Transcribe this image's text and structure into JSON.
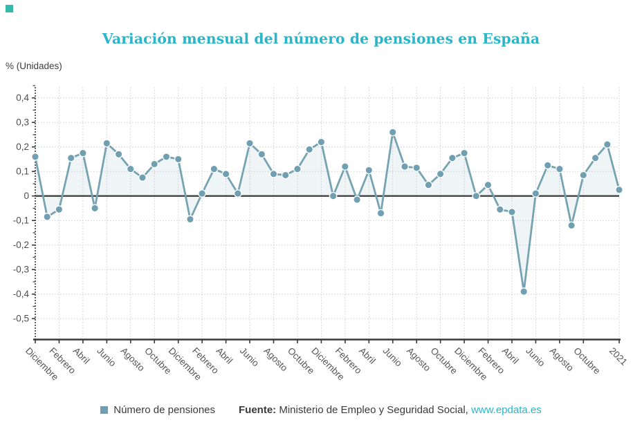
{
  "header": {
    "title": "Variación mensual del número de pensiones en España"
  },
  "brand": {
    "color": "#35b9aa"
  },
  "colors": {
    "accent_teal": "#2ab5c8",
    "series": "#6f9fb0",
    "series_line": "#76a3b2",
    "area_fill": "rgba(120,163,178,0.12)",
    "gridline": "#cccccc",
    "zero_line": "#404040",
    "axis": "#37383a",
    "tick_label": "#4d4d4d"
  },
  "legend": {
    "label": "Número de pensiones"
  },
  "footer": {
    "source_label": "Fuente:",
    "source_text": " Ministerio de Empleo y Seguridad Social, ",
    "link": "www.epdata.es"
  },
  "chart_data": {
    "type": "line",
    "title": "Variación mensual del número de pensiones en España",
    "ylabel": "% (Unidades)",
    "xlabel": "",
    "ylim": [
      -0.5,
      0.4
    ],
    "grid": true,
    "legend_position": "bottom",
    "yticks": [
      {
        "v": 0.4,
        "label": "0,4"
      },
      {
        "v": 0.3,
        "label": "0,3"
      },
      {
        "v": 0.2,
        "label": "0,2"
      },
      {
        "v": 0.1,
        "label": "0,1"
      },
      {
        "v": 0.0,
        "label": "0"
      },
      {
        "v": -0.1,
        "label": "-0,1"
      },
      {
        "v": -0.2,
        "label": "-0,2"
      },
      {
        "v": -0.3,
        "label": "-0,3"
      },
      {
        "v": -0.4,
        "label": "-0,4"
      },
      {
        "v": -0.5,
        "label": "-0,5"
      }
    ],
    "x_ticks": [
      {
        "i": 0,
        "label": "Diciembre"
      },
      {
        "i": 2,
        "label": "Febrero"
      },
      {
        "i": 4,
        "label": "Abril"
      },
      {
        "i": 6,
        "label": "Junio"
      },
      {
        "i": 8,
        "label": "Agosto"
      },
      {
        "i": 10,
        "label": "Octubre"
      },
      {
        "i": 12,
        "label": "Diciembre"
      },
      {
        "i": 14,
        "label": "Febrero"
      },
      {
        "i": 16,
        "label": "Abril"
      },
      {
        "i": 18,
        "label": "Junio"
      },
      {
        "i": 20,
        "label": "Agosto"
      },
      {
        "i": 22,
        "label": "Octubre"
      },
      {
        "i": 24,
        "label": "Diciembre"
      },
      {
        "i": 26,
        "label": "Febrero"
      },
      {
        "i": 28,
        "label": "Abril"
      },
      {
        "i": 30,
        "label": "Junio"
      },
      {
        "i": 32,
        "label": "Agosto"
      },
      {
        "i": 34,
        "label": "Octubre"
      },
      {
        "i": 36,
        "label": "Diciembre"
      },
      {
        "i": 38,
        "label": "Febrero"
      },
      {
        "i": 40,
        "label": "Abril"
      },
      {
        "i": 42,
        "label": "Junio"
      },
      {
        "i": 44,
        "label": "Agosto"
      },
      {
        "i": 46,
        "label": "Octubre"
      },
      {
        "i": 49,
        "label": "2021"
      }
    ],
    "series": [
      {
        "name": "Número de pensiones",
        "color": "#6f9fb0",
        "values": [
          0.16,
          -0.085,
          -0.055,
          0.155,
          0.175,
          -0.05,
          0.215,
          0.17,
          0.11,
          0.075,
          0.13,
          0.16,
          0.15,
          -0.095,
          0.01,
          0.11,
          0.09,
          0.01,
          0.215,
          0.17,
          0.09,
          0.085,
          0.11,
          0.19,
          0.22,
          0.0,
          0.12,
          -0.015,
          0.105,
          -0.07,
          0.26,
          0.12,
          0.115,
          0.045,
          0.09,
          0.155,
          0.175,
          0.0,
          0.045,
          -0.055,
          -0.065,
          -0.39,
          0.01,
          0.125,
          0.11,
          -0.12,
          0.085,
          0.155,
          0.21,
          0.025
        ]
      }
    ]
  }
}
